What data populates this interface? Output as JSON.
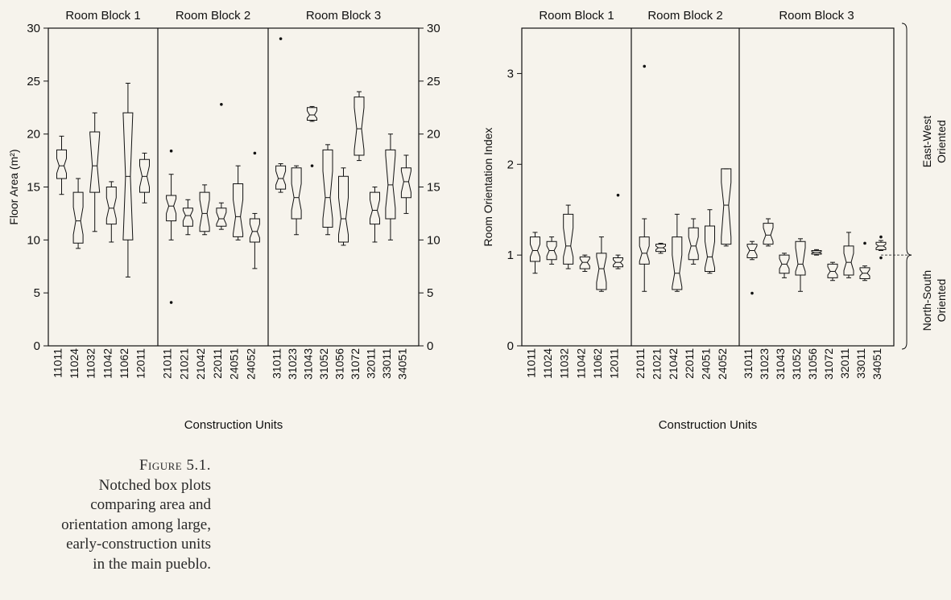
{
  "chart_data": [
    {
      "type": "boxplot",
      "variant": "notched",
      "title": "",
      "ylabel": "Floor Area (m²)",
      "xlabel": "Construction Units",
      "ylim": [
        0,
        30
      ],
      "yticks": [
        0,
        5,
        10,
        15,
        20,
        25,
        30
      ],
      "right_axis_ticks": [
        0,
        5,
        10,
        15,
        20,
        25,
        30
      ],
      "grid": false,
      "groups": [
        {
          "label": "Room Block 1",
          "categories": [
            "11011",
            "11024",
            "11032",
            "11042",
            "11062",
            "12011"
          ]
        },
        {
          "label": "Room Block 2",
          "categories": [
            "21011",
            "21021",
            "21042",
            "22011",
            "24051",
            "24052"
          ]
        },
        {
          "label": "Room Block 3",
          "categories": [
            "31011",
            "31023",
            "31043",
            "31052",
            "31056",
            "31072",
            "32011",
            "33011",
            "34051"
          ]
        }
      ],
      "boxes": [
        {
          "category": "11011",
          "whislo": 14.3,
          "q1": 15.8,
          "med": 17.0,
          "q3": 18.5,
          "whishi": 19.8,
          "notch_lo": 16.3,
          "notch_hi": 17.7,
          "fliers": []
        },
        {
          "category": "11024",
          "whislo": 9.2,
          "q1": 9.7,
          "med": 11.8,
          "q3": 14.5,
          "whishi": 15.8,
          "notch_lo": 10.5,
          "notch_hi": 13.1,
          "fliers": []
        },
        {
          "category": "11032",
          "whislo": 10.8,
          "q1": 14.5,
          "med": 17.0,
          "q3": 20.2,
          "whishi": 22.0,
          "notch_lo": 14.0,
          "notch_hi": 20.0,
          "fliers": []
        },
        {
          "category": "11042",
          "whislo": 9.8,
          "q1": 11.5,
          "med": 13.0,
          "q3": 15.0,
          "whishi": 15.5,
          "notch_lo": 12.0,
          "notch_hi": 14.0,
          "fliers": []
        },
        {
          "category": "11062",
          "whislo": 6.5,
          "q1": 10.0,
          "med": 16.0,
          "q3": 22.0,
          "whishi": 24.8,
          "notch_lo": 7.0,
          "notch_hi": 22.0,
          "fliers": []
        },
        {
          "category": "12011",
          "whislo": 13.5,
          "q1": 14.5,
          "med": 16.0,
          "q3": 17.6,
          "whishi": 18.2,
          "notch_lo": 15.0,
          "notch_hi": 17.0,
          "fliers": []
        },
        {
          "category": "21011",
          "whislo": 10.0,
          "q1": 11.8,
          "med": 13.2,
          "q3": 14.2,
          "whishi": 16.2,
          "notch_lo": 12.5,
          "notch_hi": 13.9,
          "fliers": [
            18.4,
            4.1
          ]
        },
        {
          "category": "21021",
          "whislo": 10.5,
          "q1": 11.3,
          "med": 12.3,
          "q3": 13.0,
          "whishi": 13.8,
          "notch_lo": 11.8,
          "notch_hi": 12.8,
          "fliers": []
        },
        {
          "category": "21042",
          "whislo": 10.5,
          "q1": 10.8,
          "med": 12.5,
          "q3": 14.5,
          "whishi": 15.2,
          "notch_lo": 11.2,
          "notch_hi": 13.8,
          "fliers": []
        },
        {
          "category": "22011",
          "whislo": 11.0,
          "q1": 11.3,
          "med": 12.0,
          "q3": 13.0,
          "whishi": 13.5,
          "notch_lo": 11.5,
          "notch_hi": 12.6,
          "fliers": [
            22.8
          ]
        },
        {
          "category": "24051",
          "whislo": 10.0,
          "q1": 10.3,
          "med": 12.2,
          "q3": 15.3,
          "whishi": 17.0,
          "notch_lo": 10.6,
          "notch_hi": 13.8,
          "fliers": []
        },
        {
          "category": "24052",
          "whislo": 7.3,
          "q1": 9.8,
          "med": 10.8,
          "q3": 12.0,
          "whishi": 12.5,
          "notch_lo": 10.2,
          "notch_hi": 11.5,
          "fliers": [
            18.2
          ]
        },
        {
          "category": "31011",
          "whislo": 14.5,
          "q1": 14.8,
          "med": 15.8,
          "q3": 17.0,
          "whishi": 17.2,
          "notch_lo": 15.2,
          "notch_hi": 16.5,
          "fliers": [
            29.0
          ]
        },
        {
          "category": "31023",
          "whislo": 10.5,
          "q1": 12.0,
          "med": 14.0,
          "q3": 16.8,
          "whishi": 17.0,
          "notch_lo": 12.8,
          "notch_hi": 15.3,
          "fliers": []
        },
        {
          "category": "31043",
          "whislo": 21.2,
          "q1": 21.3,
          "med": 21.8,
          "q3": 22.5,
          "whishi": 22.6,
          "notch_lo": 21.5,
          "notch_hi": 22.2,
          "fliers": [
            17.0
          ]
        },
        {
          "category": "31052",
          "whislo": 10.5,
          "q1": 11.2,
          "med": 14.0,
          "q3": 18.5,
          "whishi": 19.0,
          "notch_lo": 12.0,
          "notch_hi": 16.5,
          "fliers": []
        },
        {
          "category": "31056",
          "whislo": 9.5,
          "q1": 9.8,
          "med": 12.0,
          "q3": 16.0,
          "whishi": 16.8,
          "notch_lo": 10.5,
          "notch_hi": 14.0,
          "fliers": []
        },
        {
          "category": "31072",
          "whislo": 17.5,
          "q1": 18.0,
          "med": 20.5,
          "q3": 23.5,
          "whishi": 24.0,
          "notch_lo": 18.5,
          "notch_hi": 22.5,
          "fliers": []
        },
        {
          "category": "32011",
          "whislo": 9.8,
          "q1": 11.5,
          "med": 12.8,
          "q3": 14.5,
          "whishi": 15.0,
          "notch_lo": 12.0,
          "notch_hi": 13.8,
          "fliers": []
        },
        {
          "category": "33011",
          "whislo": 10.0,
          "q1": 12.0,
          "med": 15.2,
          "q3": 18.5,
          "whishi": 20.0,
          "notch_lo": 13.0,
          "notch_hi": 18.0,
          "fliers": []
        },
        {
          "category": "34051",
          "whislo": 12.5,
          "q1": 14.0,
          "med": 15.5,
          "q3": 16.8,
          "whishi": 18.0,
          "notch_lo": 14.5,
          "notch_hi": 16.5,
          "fliers": []
        }
      ]
    },
    {
      "type": "boxplot",
      "variant": "notched",
      "title": "",
      "ylabel": "Room Orientation Index",
      "xlabel": "Construction Units",
      "ylim": [
        0,
        3.5
      ],
      "yticks": [
        0,
        1,
        2,
        3
      ],
      "reference_line": 1.0,
      "right_annotations": [
        "East-West Oriented",
        "North-South Oriented"
      ],
      "right_annotation_lines": [
        [
          "East-West",
          "Oriented"
        ],
        [
          "North-South",
          "Oriented"
        ]
      ],
      "grid": false,
      "groups": [
        {
          "label": "Room Block 1",
          "categories": [
            "11011",
            "11024",
            "11032",
            "11042",
            "11062",
            "12011"
          ]
        },
        {
          "label": "Room Block 2",
          "categories": [
            "21011",
            "21021",
            "21042",
            "22011",
            "24051",
            "24052"
          ]
        },
        {
          "label": "Room Block 3",
          "categories": [
            "31011",
            "31023",
            "31043",
            "31052",
            "31056",
            "31072",
            "32011",
            "33011",
            "34051"
          ]
        }
      ],
      "boxes": [
        {
          "category": "11011",
          "whislo": 0.8,
          "q1": 0.93,
          "med": 1.05,
          "q3": 1.2,
          "whishi": 1.25,
          "notch_lo": 0.98,
          "notch_hi": 1.12,
          "fliers": []
        },
        {
          "category": "11024",
          "whislo": 0.9,
          "q1": 0.95,
          "med": 1.05,
          "q3": 1.15,
          "whishi": 1.2,
          "notch_lo": 0.99,
          "notch_hi": 1.1,
          "fliers": []
        },
        {
          "category": "11032",
          "whislo": 0.85,
          "q1": 0.9,
          "med": 1.1,
          "q3": 1.45,
          "whishi": 1.55,
          "notch_lo": 0.98,
          "notch_hi": 1.3,
          "fliers": []
        },
        {
          "category": "11042",
          "whislo": 0.82,
          "q1": 0.85,
          "med": 0.92,
          "q3": 0.98,
          "whishi": 1.0,
          "notch_lo": 0.88,
          "notch_hi": 0.96,
          "fliers": []
        },
        {
          "category": "11062",
          "whislo": 0.6,
          "q1": 0.62,
          "med": 0.85,
          "q3": 1.02,
          "whishi": 1.2,
          "notch_lo": 0.7,
          "notch_hi": 0.98,
          "fliers": []
        },
        {
          "category": "12011",
          "whislo": 0.85,
          "q1": 0.87,
          "med": 0.92,
          "q3": 0.97,
          "whishi": 1.0,
          "notch_lo": 0.89,
          "notch_hi": 0.95,
          "fliers": [
            1.66
          ]
        },
        {
          "category": "21011",
          "whislo": 0.6,
          "q1": 0.9,
          "med": 1.02,
          "q3": 1.2,
          "whishi": 1.4,
          "notch_lo": 0.93,
          "notch_hi": 1.1,
          "fliers": [
            3.08
          ]
        },
        {
          "category": "21021",
          "whislo": 1.02,
          "q1": 1.04,
          "med": 1.08,
          "q3": 1.12,
          "whishi": 1.13,
          "notch_lo": 1.06,
          "notch_hi": 1.1,
          "fliers": []
        },
        {
          "category": "21042",
          "whislo": 0.6,
          "q1": 0.62,
          "med": 0.8,
          "q3": 1.2,
          "whishi": 1.45,
          "notch_lo": 0.65,
          "notch_hi": 1.0,
          "fliers": []
        },
        {
          "category": "22011",
          "whislo": 0.9,
          "q1": 0.95,
          "med": 1.1,
          "q3": 1.3,
          "whishi": 1.4,
          "notch_lo": 1.0,
          "notch_hi": 1.2,
          "fliers": []
        },
        {
          "category": "24051",
          "whislo": 0.8,
          "q1": 0.82,
          "med": 0.98,
          "q3": 1.32,
          "whishi": 1.5,
          "notch_lo": 0.86,
          "notch_hi": 1.15,
          "fliers": []
        },
        {
          "category": "24052",
          "whislo": 1.1,
          "q1": 1.12,
          "med": 1.55,
          "q3": 1.95,
          "whishi": 1.95,
          "notch_lo": 1.2,
          "notch_hi": 1.8,
          "fliers": []
        },
        {
          "category": "31011",
          "whislo": 0.95,
          "q1": 0.97,
          "med": 1.05,
          "q3": 1.12,
          "whishi": 1.15,
          "notch_lo": 1.0,
          "notch_hi": 1.1,
          "fliers": [
            0.58
          ]
        },
        {
          "category": "31023",
          "whislo": 1.1,
          "q1": 1.12,
          "med": 1.22,
          "q3": 1.35,
          "whishi": 1.4,
          "notch_lo": 1.15,
          "notch_hi": 1.3,
          "fliers": []
        },
        {
          "category": "31043",
          "whislo": 0.75,
          "q1": 0.8,
          "med": 0.9,
          "q3": 1.0,
          "whishi": 1.02,
          "notch_lo": 0.85,
          "notch_hi": 0.96,
          "fliers": []
        },
        {
          "category": "31052",
          "whislo": 0.6,
          "q1": 0.78,
          "med": 0.9,
          "q3": 1.15,
          "whishi": 1.18,
          "notch_lo": 0.82,
          "notch_hi": 1.08,
          "fliers": []
        },
        {
          "category": "31056",
          "whislo": 1.0,
          "q1": 1.01,
          "med": 1.03,
          "q3": 1.05,
          "whishi": 1.06,
          "notch_lo": 1.02,
          "notch_hi": 1.04,
          "fliers": []
        },
        {
          "category": "31072",
          "whislo": 0.72,
          "q1": 0.75,
          "med": 0.82,
          "q3": 0.9,
          "whishi": 0.92,
          "notch_lo": 0.78,
          "notch_hi": 0.87,
          "fliers": []
        },
        {
          "category": "32011",
          "whislo": 0.75,
          "q1": 0.78,
          "med": 0.92,
          "q3": 1.1,
          "whishi": 1.25,
          "notch_lo": 0.83,
          "notch_hi": 1.02,
          "fliers": []
        },
        {
          "category": "33011",
          "whislo": 0.72,
          "q1": 0.74,
          "med": 0.8,
          "q3": 0.86,
          "whishi": 0.88,
          "notch_lo": 0.77,
          "notch_hi": 0.84,
          "fliers": [
            1.13
          ]
        },
        {
          "category": "34051",
          "whislo": 1.05,
          "q1": 1.06,
          "med": 1.1,
          "q3": 1.14,
          "whishi": 1.16,
          "notch_lo": 1.08,
          "notch_hi": 1.12,
          "fliers": [
            1.2,
            0.97
          ]
        }
      ]
    }
  ],
  "caption": {
    "figure_label": "Figure 5.1.",
    "lines": [
      "Notched box plots",
      "comparing area and",
      "orientation among large,",
      "early-construction units",
      "in the main pueblo."
    ]
  }
}
